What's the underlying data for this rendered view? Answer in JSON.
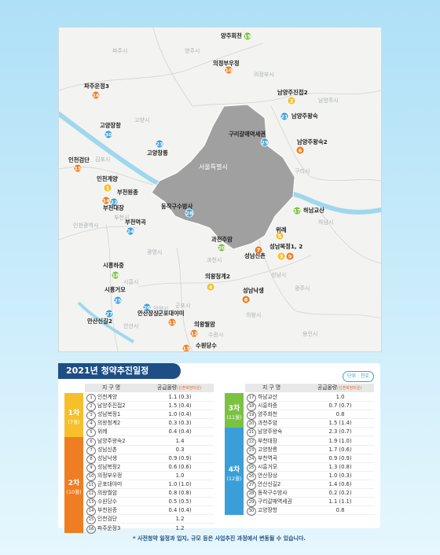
{
  "map": {
    "seoul_label": "서울특별시",
    "regions": [
      "파주시",
      "양주시",
      "의정부시",
      "고양시",
      "남양주시",
      "김포시",
      "구리시",
      "인천광역시",
      "부천시",
      "하남시",
      "광명시",
      "과천시",
      "시흥시",
      "안양시",
      "성남시",
      "군포시",
      "광주시",
      "안산시",
      "의왕시",
      "수원시",
      "용인시"
    ],
    "sites": [
      {
        "n": "19",
        "name": "양주회천",
        "color": "#7cc242"
      },
      {
        "n": "10",
        "name": "의정부우정",
        "color": "#ef7d22"
      },
      {
        "n": "16",
        "name": "파주운정3",
        "color": "#ef7d22"
      },
      {
        "n": "2",
        "name": "남양주진접2",
        "color": "#f5c02c"
      },
      {
        "n": "21",
        "name": "남양주왕숙",
        "color": "#3a9fd8"
      },
      {
        "n": "30",
        "name": "고양장항",
        "color": "#3a9fd8"
      },
      {
        "n": "29",
        "name": "구리갈매역세권",
        "color": "#3a9fd8"
      },
      {
        "n": "6",
        "name": "남양주왕숙2",
        "color": "#ef7d22"
      },
      {
        "n": "23",
        "name": "고양창릉",
        "color": "#3a9fd8"
      },
      {
        "n": "15",
        "name": "인천검단",
        "color": "#ef7d22"
      },
      {
        "n": "1",
        "name": "인천계양",
        "color": "#f5c02c"
      },
      {
        "n": "14",
        "name": "부천원종",
        "color": "#ef7d22"
      },
      {
        "n": "22",
        "name": "부천대장",
        "color": "#3a9fd8"
      },
      {
        "n": "28",
        "name": "동작구수방사",
        "color": "#3a9fd8"
      },
      {
        "n": "17",
        "name": "하남교산",
        "color": "#7cc242"
      },
      {
        "n": "24",
        "name": "부천역곡",
        "color": "#3a9fd8"
      },
      {
        "n": "5",
        "name": "위례",
        "color": "#f5c02c"
      },
      {
        "n": "20",
        "name": "과천주암",
        "color": "#7cc242"
      },
      {
        "n": "7",
        "name": "성남신촌",
        "color": "#ef7d22"
      },
      {
        "n": "3",
        "name": "성남복정1, 2",
        "color": "#f5c02c"
      },
      {
        "n": "9",
        "name": "",
        "color": "#ef7d22"
      },
      {
        "n": "18",
        "name": "시흥하중",
        "color": "#7cc242"
      },
      {
        "n": "4",
        "name": "의왕청계2",
        "color": "#f5c02c"
      },
      {
        "n": "8",
        "name": "성남낙생",
        "color": "#ef7d22"
      },
      {
        "n": "25",
        "name": "시흥거모",
        "color": "#3a9fd8"
      },
      {
        "n": "26",
        "name": "안산장상",
        "color": "#3a9fd8"
      },
      {
        "n": "11",
        "name": "군포대야미",
        "color": "#ef7d22"
      },
      {
        "n": "27",
        "name": "안산신길2",
        "color": "#3a9fd8"
      },
      {
        "n": "12",
        "name": "의왕월암",
        "color": "#ef7d22"
      },
      {
        "n": "13",
        "name": "수원당수",
        "color": "#ef7d22"
      }
    ]
  },
  "schedule": {
    "title": "2021년 청약추진일정",
    "unit": "단위 : 천호",
    "col_district": "지 구 명",
    "col_supply": "공급물량",
    "col_supply_note": "(신혼희망타운)",
    "phases": [
      {
        "label": "1차",
        "month": "(7월)",
        "color": "#f5c02c"
      },
      {
        "label": "2차",
        "month": "(10월)",
        "color": "#ef7d22"
      },
      {
        "label": "3차",
        "month": "(11월)",
        "color": "#7cc242"
      },
      {
        "label": "4차",
        "month": "(12월)",
        "color": "#3a9fd8"
      }
    ],
    "left_rows": [
      {
        "n": "1",
        "name": "인천계양",
        "qty": "1.1 (0.3)"
      },
      {
        "n": "2",
        "name": "남양주진접2",
        "qty": "1.5 (0.4)"
      },
      {
        "n": "3",
        "name": "성남복정1",
        "qty": "1.0 (0.4)"
      },
      {
        "n": "4",
        "name": "의왕청계2",
        "qty": "0.3 (0.3)"
      },
      {
        "n": "5",
        "name": "위례",
        "qty": "0.4 (0.4)"
      },
      {
        "n": "6",
        "name": "남양주왕숙2",
        "qty": "1.4"
      },
      {
        "n": "7",
        "name": "성남신촌",
        "qty": "0.3"
      },
      {
        "n": "8",
        "name": "성남낙생",
        "qty": "0.9 (0.9)"
      },
      {
        "n": "9",
        "name": "성남복정2",
        "qty": "0.6 (0.6)"
      },
      {
        "n": "10",
        "name": "의정부우정",
        "qty": "1.0"
      },
      {
        "n": "11",
        "name": "군포대야미",
        "qty": "1.0 (1.0)"
      },
      {
        "n": "12",
        "name": "의왕월암",
        "qty": "0.8 (0.8)"
      },
      {
        "n": "13",
        "name": "수원당수",
        "qty": "0.5 (0.5)"
      },
      {
        "n": "14",
        "name": "부천원종",
        "qty": "0.4 (0.4)"
      },
      {
        "n": "15",
        "name": "인천검단",
        "qty": "1.2"
      },
      {
        "n": "16",
        "name": "파주운정3",
        "qty": "1.2"
      }
    ],
    "right_rows": [
      {
        "n": "17",
        "name": "하남교산",
        "qty": "1.0"
      },
      {
        "n": "18",
        "name": "시흥하중",
        "qty": "0.7 (0.7)"
      },
      {
        "n": "19",
        "name": "양주회천",
        "qty": "0.8"
      },
      {
        "n": "20",
        "name": "과천주암",
        "qty": "1.5 (1.4)"
      },
      {
        "n": "21",
        "name": "남양주왕숙",
        "qty": "2.3 (0.7)"
      },
      {
        "n": "22",
        "name": "부천대장",
        "qty": "1.9 (1.0)"
      },
      {
        "n": "23",
        "name": "고양창릉",
        "qty": "1.7 (0.6)"
      },
      {
        "n": "24",
        "name": "부천역곡",
        "qty": "0.9 (0.9)"
      },
      {
        "n": "25",
        "name": "시흥거모",
        "qty": "1.3 (0.8)"
      },
      {
        "n": "26",
        "name": "안산장상",
        "qty": "1.0 (0.3)"
      },
      {
        "n": "27",
        "name": "안산신길2",
        "qty": "1.4 (0.6)"
      },
      {
        "n": "28",
        "name": "동작구수방사",
        "qty": "0.2 (0.2)"
      },
      {
        "n": "29",
        "name": "구리갈매역세권",
        "qty": "1.1 (1.1)"
      },
      {
        "n": "30",
        "name": "고양장항",
        "qty": "0.8"
      }
    ],
    "footnote": "* 사전청약 일정과 입지, 규모 등은 사업추진 과정에서 변동될 수 있습니다."
  }
}
